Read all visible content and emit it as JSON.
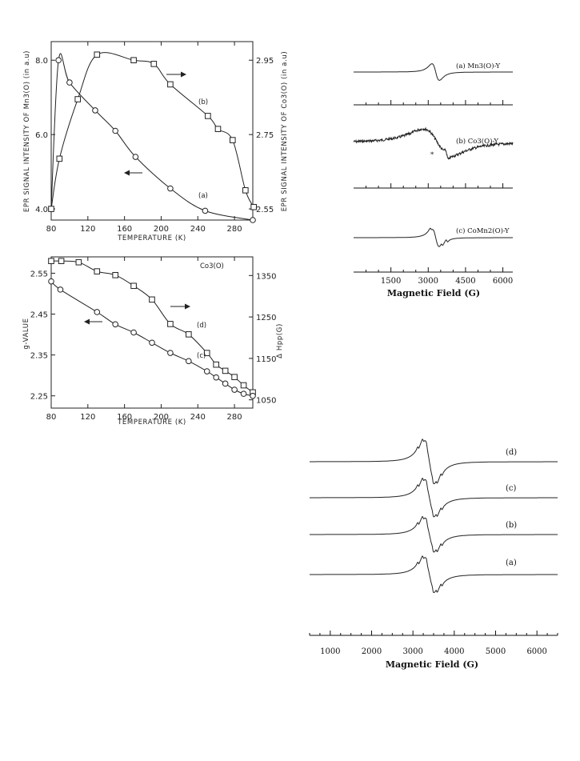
{
  "chart_data": [
    {
      "type": "scatter",
      "xlabel": "TEMPERATURE (K)",
      "ylabel_left": "EPR SIGNAL INTENSITY OF Mn3(O) (in a.u)",
      "ylabel_right": "EPR SIGNAL INTENSITY OF Co3(O) (in a.u)",
      "x_ticks": [
        "80",
        "120",
        "160",
        "200",
        "240",
        "280"
      ],
      "y_left_ticks": [
        "4.0",
        "6.0",
        "8.0"
      ],
      "y_right_ticks": [
        "2.55",
        "2.75",
        "2.95"
      ],
      "xlim": [
        80,
        300
      ],
      "ylim_left": [
        3.7,
        8.5
      ],
      "ylim_right": [
        2.52,
        3.0
      ],
      "series": [
        {
          "name": "(a)",
          "marker": "circle",
          "axis": "left",
          "x": [
            80,
            88,
            100,
            128,
            150,
            172,
            210,
            248,
            300
          ],
          "y": [
            4.0,
            8.0,
            7.4,
            6.65,
            6.1,
            5.4,
            4.55,
            3.95,
            3.7
          ]
        },
        {
          "name": "(b)",
          "marker": "square",
          "axis": "right",
          "x": [
            80,
            89,
            109,
            130,
            170,
            192,
            210,
            251,
            262,
            278,
            292,
            301
          ],
          "y": [
            2.55,
            2.685,
            2.845,
            2.965,
            2.95,
            2.94,
            2.885,
            2.8,
            2.765,
            2.735,
            2.6,
            2.555
          ]
        }
      ],
      "annotations": [
        "(b)",
        "(a)"
      ]
    },
    {
      "type": "scatter",
      "title": "Co3(O)",
      "xlabel": "TEMPERATURE (K)",
      "ylabel_left": "g-VALUE",
      "ylabel_right": "Δ Hpp(G)",
      "x_ticks": [
        "80",
        "120",
        "160",
        "200",
        "240",
        "280"
      ],
      "y_left_ticks": [
        "2.25",
        "2.35",
        "2.45",
        "2.55"
      ],
      "y_right_ticks": [
        "1050",
        "1150",
        "1250",
        "1350"
      ],
      "xlim": [
        80,
        300
      ],
      "ylim_left": [
        2.22,
        2.59
      ],
      "ylim_right": [
        1030,
        1395
      ],
      "series": [
        {
          "name": "(d)",
          "marker": "square",
          "axis": "right",
          "x": [
            80,
            91,
            110,
            130,
            150,
            170,
            190,
            210,
            230,
            250,
            260,
            270,
            280,
            290,
            300
          ],
          "y": [
            1385,
            1385,
            1382,
            1360,
            1351,
            1325,
            1292,
            1233,
            1208,
            1163,
            1135,
            1120,
            1105,
            1085,
            1068
          ]
        },
        {
          "name": "(c)",
          "marker": "circle",
          "axis": "left",
          "x": [
            80,
            90,
            130,
            150,
            170,
            190,
            210,
            230,
            250,
            260,
            270,
            280,
            290,
            300
          ],
          "y": [
            2.53,
            2.51,
            2.455,
            2.425,
            2.405,
            2.38,
            2.355,
            2.335,
            2.31,
            2.295,
            2.28,
            2.265,
            2.255,
            2.25
          ]
        }
      ],
      "annotations": [
        "(d)",
        "(c)"
      ]
    },
    {
      "type": "line",
      "xlabel": "Magnetic Field (G)",
      "x_ticks": [
        "1500",
        "3000",
        "4500",
        "6000"
      ],
      "xlim": [
        0,
        6400
      ],
      "series": [
        {
          "name": "(a) Mn3(O)-Y",
          "center": 3300
        },
        {
          "name": "(b) Co3(O)-Y",
          "center": 3300
        },
        {
          "name": "(c) CoMn2(O)-Y",
          "center": 3300
        }
      ],
      "annotations": [
        "*"
      ]
    },
    {
      "type": "line",
      "xlabel": "Magnetic Field (G)",
      "x_ticks": [
        "1000",
        "2000",
        "3000",
        "4000",
        "5000",
        "6000"
      ],
      "xlim": [
        500,
        6500
      ],
      "series": [
        {
          "name": "(d)"
        },
        {
          "name": "(c)"
        },
        {
          "name": "(b)"
        },
        {
          "name": "(a)"
        }
      ]
    }
  ]
}
